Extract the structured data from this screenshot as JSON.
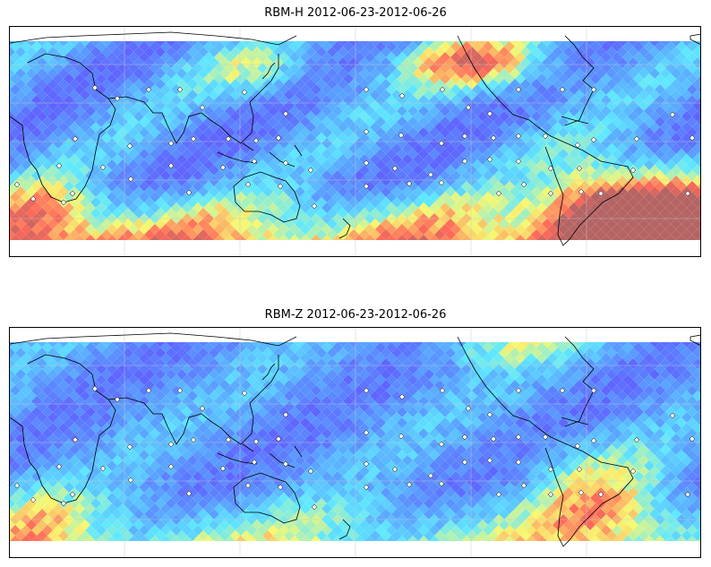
{
  "maps": [
    {
      "title": "RBM-H 2012-06-23-2012-06-26",
      "field": "rbm-h"
    },
    {
      "title": "RBM-Z 2012-06-23-2012-06-26",
      "field": "rbm-z"
    }
  ],
  "colors": {
    "low": "#5f66ff",
    "mid_low": "#5aa0ff",
    "mid": "#5fe8ff",
    "mid_high": "#f8f870",
    "high": "#ff6a5a",
    "max": "#b56464",
    "coast": "#000000",
    "grid": "#c8c8c8"
  }
}
